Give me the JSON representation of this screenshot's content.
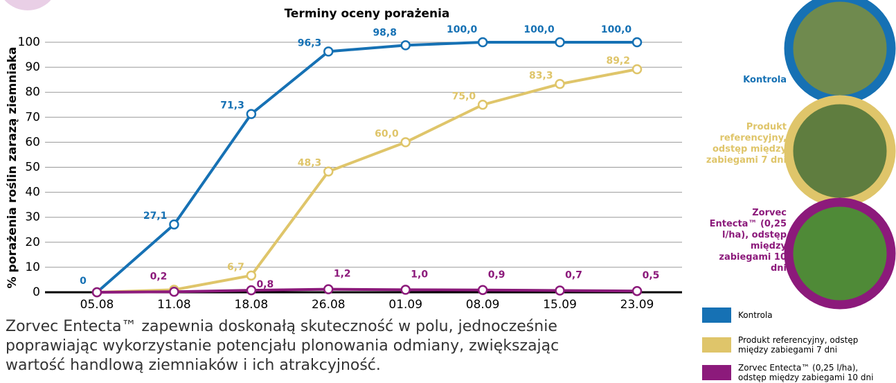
{
  "chart_data": {
    "type": "line",
    "title": "Terminy oceny porażenia",
    "y_label": "% porażenia roślin zarazą ziemniaka",
    "categories": [
      "05.08",
      "11.08",
      "18.08",
      "26.08",
      "01.09",
      "08.09",
      "15.09",
      "23.09"
    ],
    "series": [
      {
        "name": "Kontrola",
        "color": "#1671b4",
        "values": [
          0,
          27.1,
          71.3,
          96.3,
          98.8,
          100,
          100,
          100
        ],
        "value_labels": [
          "0",
          "27,1",
          "71,3",
          "96,3",
          "98,8",
          "100,0",
          "100,0",
          "100,0"
        ]
      },
      {
        "name": "Produkt referencyjny, odstęp między zabiegami 7 dni",
        "color": "#dfc56a",
        "values": [
          0,
          1,
          6.7,
          48.3,
          60.0,
          75.0,
          83.3,
          89.2
        ],
        "value_labels": [
          null,
          null,
          "6,7",
          "48,3",
          "60,0",
          "75,0",
          "83,3",
          "89,2"
        ]
      },
      {
        "name": "Zorvec Entecta™ (0,25 l/ha), odstęp między zabiegami 10 dni",
        "color": "#8c1a7b",
        "values": [
          0,
          0.2,
          0.8,
          1.2,
          1.0,
          0.9,
          0.7,
          0.5
        ],
        "value_labels": [
          null,
          "0,2",
          "0,8",
          "1,2",
          "1,0",
          "0,9",
          "0,7",
          "0,5"
        ]
      }
    ],
    "ylim": [
      0,
      100
    ],
    "yticks": [
      0,
      10,
      20,
      30,
      40,
      50,
      60,
      70,
      80,
      90,
      100
    ],
    "grid": true,
    "legend": "bottom-right",
    "caption": "Zorvec Entecta™ zapewnia doskonałą skuteczność w polu, jednocześnie poprawiając wykorzystanie potencjału plonowania odmiany, zwiększając wartość handlową ziemniaków i ich atrakcyjność."
  }
}
